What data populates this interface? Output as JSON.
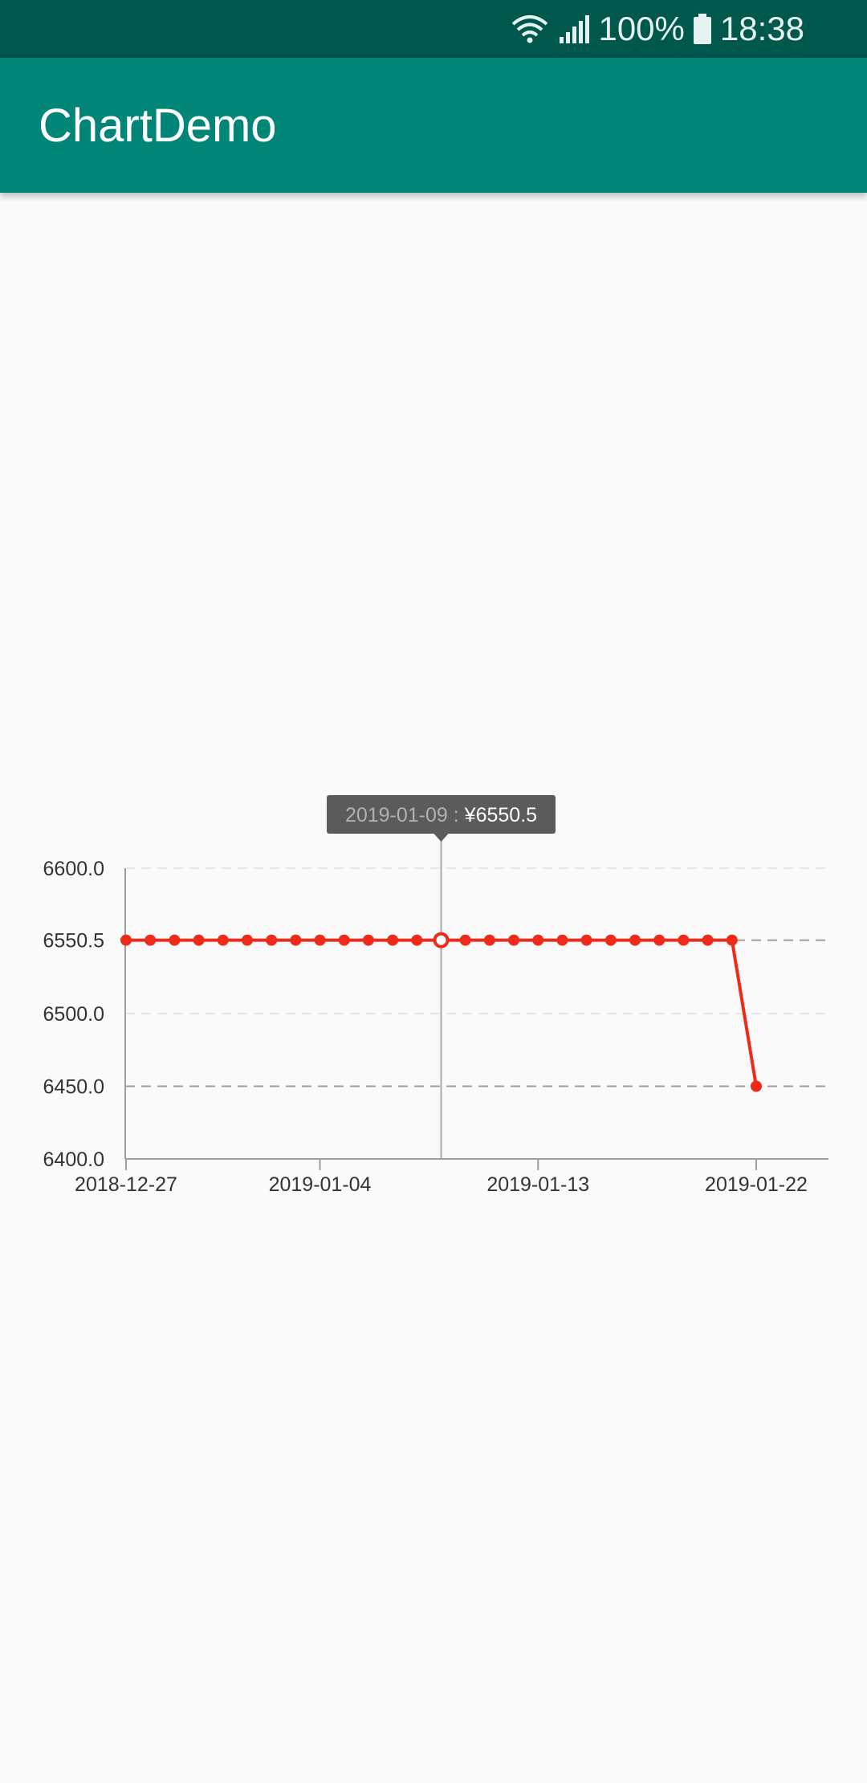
{
  "status_bar": {
    "battery": "100%",
    "time": "18:38",
    "icons": [
      "wifi-icon",
      "signal-icon",
      "battery-icon"
    ]
  },
  "app_bar": {
    "title": "ChartDemo"
  },
  "colors": {
    "status_bar": "#00574b",
    "app_bar": "#008577",
    "series": "#ee2a1b",
    "tooltip_bg": "#5b5b5b"
  },
  "chart_data": {
    "type": "line",
    "title": "",
    "xlabel": "",
    "ylabel": "",
    "ylim": [
      6400,
      6600
    ],
    "y_ticks": [
      "6600.0",
      "6550.5",
      "6500.0",
      "6450.0",
      "6400.0"
    ],
    "x_tick_labels": [
      "2018-12-27",
      "2019-01-04",
      "2019-01-13",
      "2019-01-22"
    ],
    "grid": true,
    "dashed_reference_lines": [
      6550.5,
      6450.0
    ],
    "x": [
      "2018-12-27",
      "2018-12-28",
      "2018-12-29",
      "2018-12-30",
      "2018-12-31",
      "2019-01-01",
      "2019-01-02",
      "2019-01-03",
      "2019-01-04",
      "2019-01-05",
      "2019-01-06",
      "2019-01-07",
      "2019-01-08",
      "2019-01-09",
      "2019-01-10",
      "2019-01-11",
      "2019-01-12",
      "2019-01-13",
      "2019-01-14",
      "2019-01-15",
      "2019-01-16",
      "2019-01-17",
      "2019-01-18",
      "2019-01-19",
      "2019-01-20",
      "2019-01-21",
      "2019-01-22"
    ],
    "series": [
      {
        "values": [
          6550.5,
          6550.5,
          6550.5,
          6550.5,
          6550.5,
          6550.5,
          6550.5,
          6550.5,
          6550.5,
          6550.5,
          6550.5,
          6550.5,
          6550.5,
          6550.5,
          6550.5,
          6550.5,
          6550.5,
          6550.5,
          6550.5,
          6550.5,
          6550.5,
          6550.5,
          6550.5,
          6550.5,
          6550.5,
          6550.5,
          6450.0
        ]
      }
    ],
    "tooltip": {
      "date": "2019-01-09",
      "separator": ":",
      "value": "¥6550.5"
    }
  }
}
